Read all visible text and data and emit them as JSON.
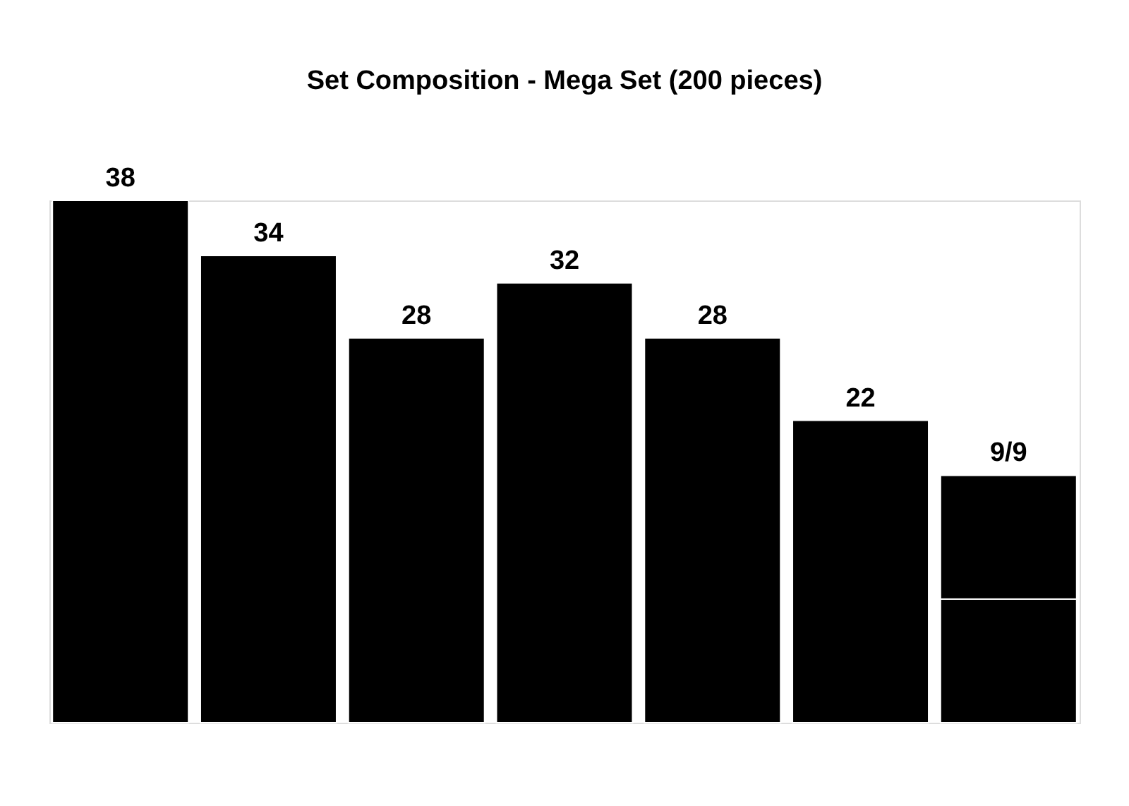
{
  "chart_data": {
    "type": "bar",
    "title": "Set Composition -  Mega Set (200 pieces)",
    "categories": [
      null,
      null,
      null,
      null,
      null,
      null,
      null
    ],
    "stacked": true,
    "series": [
      {
        "color": "#000000",
        "values": [
          38,
          34,
          28,
          32,
          28,
          22,
          9
        ],
        "value_labels": [
          "38",
          "34",
          "28",
          "32",
          "28",
          "22",
          null
        ]
      },
      {
        "color": "#000000",
        "values": [
          null,
          null,
          null,
          null,
          null,
          null,
          9
        ],
        "value_labels": [
          null,
          null,
          null,
          null,
          null,
          null,
          "9/9"
        ]
      }
    ]
  }
}
